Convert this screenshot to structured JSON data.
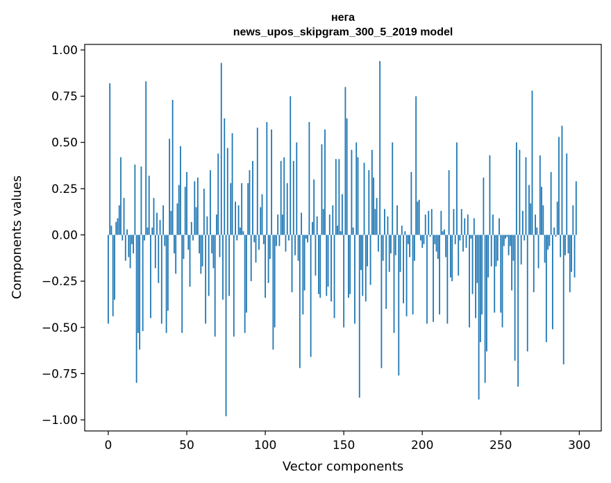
{
  "chart_data": {
    "type": "bar",
    "title": "нега",
    "subtitle": "news_upos_skipgram_300_5_2019 model",
    "xlabel": "Vector components",
    "ylabel": "Components values",
    "xlim": [
      -15,
      314
    ],
    "ylim": [
      -1.06,
      1.03
    ],
    "xticks": [
      0,
      50,
      100,
      150,
      200,
      250,
      300
    ],
    "yticks": [
      1.0,
      0.75,
      0.5,
      0.25,
      0.0,
      -0.25,
      -0.5,
      -0.75,
      -1.0
    ],
    "ytick_labels": [
      "1.00",
      "0.75",
      "0.50",
      "0.25",
      "0.00",
      "−0.25",
      "−0.50",
      "−0.75",
      "−1.00"
    ],
    "grid": false,
    "color": "#1f77b4",
    "values": [
      -0.48,
      0.82,
      0.05,
      -0.44,
      -0.35,
      0.07,
      0.09,
      0.16,
      0.42,
      -0.03,
      0.2,
      -0.14,
      0.03,
      -0.12,
      -0.18,
      -0.05,
      -0.1,
      0.38,
      -0.8,
      -0.53,
      -0.62,
      0.37,
      -0.52,
      -0.03,
      0.83,
      0.04,
      0.32,
      -0.45,
      0.04,
      0.2,
      -0.18,
      0.12,
      -0.26,
      0.08,
      -0.48,
      0.16,
      -0.06,
      -0.53,
      -0.41,
      0.52,
      0.13,
      0.73,
      -0.1,
      -0.21,
      0.17,
      0.27,
      0.48,
      -0.53,
      -0.13,
      0.26,
      0.34,
      -0.08,
      -0.28,
      0.07,
      -0.03,
      0.29,
      0.15,
      0.31,
      -0.1,
      -0.21,
      -0.17,
      0.25,
      -0.48,
      0.1,
      -0.33,
      0.35,
      -0.1,
      -0.18,
      -0.55,
      0.11,
      0.44,
      -0.12,
      0.93,
      -0.35,
      0.63,
      -0.98,
      0.47,
      -0.33,
      0.28,
      0.55,
      -0.55,
      0.18,
      -0.03,
      0.16,
      0.04,
      0.28,
      0.02,
      -0.53,
      -0.42,
      0.28,
      0.35,
      -0.25,
      0.4,
      -0.04,
      -0.15,
      0.58,
      -0.08,
      0.15,
      0.22,
      -0.05,
      -0.34,
      0.61,
      -0.26,
      -0.13,
      0.57,
      -0.62,
      -0.5,
      -0.06,
      0.11,
      -0.06,
      0.4,
      0.11,
      0.42,
      -0.09,
      0.28,
      -0.03,
      0.75,
      -0.31,
      0.4,
      -0.11,
      0.5,
      -0.14,
      -0.72,
      0.12,
      -0.43,
      -0.3,
      -0.02,
      -0.04,
      0.61,
      -0.66,
      0.07,
      0.3,
      -0.22,
      0.1,
      -0.32,
      -0.34,
      0.49,
      0.14,
      0.57,
      -0.33,
      -0.28,
      0.11,
      -0.36,
      0.16,
      -0.45,
      0.41,
      0.05,
      0.41,
      0.02,
      0.22,
      -0.5,
      0.8,
      0.63,
      -0.34,
      -0.32,
      0.46,
      0.04,
      -0.48,
      0.5,
      0.42,
      -0.88,
      -0.19,
      -0.33,
      0.39,
      -0.36,
      -0.17,
      0.35,
      -0.27,
      0.46,
      0.31,
      0.14,
      0.2,
      -0.09,
      0.94,
      -0.72,
      -0.14,
      0.14,
      -0.4,
      0.1,
      -0.2,
      -0.1,
      0.5,
      -0.53,
      -0.11,
      0.16,
      -0.76,
      -0.2,
      0.05,
      -0.37,
      0.02,
      -0.44,
      -0.05,
      -0.12,
      0.34,
      -0.43,
      -0.14,
      0.75,
      0.18,
      0.19,
      -0.03,
      -0.07,
      -0.05,
      0.11,
      -0.48,
      0.13,
      -0.01,
      0.14,
      -0.47,
      -0.05,
      -0.09,
      -0.13,
      -0.43,
      0.13,
      0.02,
      0.03,
      -0.12,
      -0.48,
      0.35,
      -0.23,
      -0.25,
      0.14,
      -0.05,
      0.5,
      -0.22,
      -0.03,
      0.14,
      -0.09,
      0.09,
      -0.07,
      0.11,
      -0.5,
      -0.02,
      -0.32,
      0.09,
      -0.45,
      -0.26,
      -0.89,
      -0.58,
      -0.43,
      0.31,
      -0.8,
      -0.63,
      -0.23,
      0.43,
      -0.17,
      0.11,
      -0.42,
      -0.17,
      -0.14,
      0.09,
      -0.42,
      -0.5,
      -0.06,
      -0.02,
      -0.01,
      -0.11,
      -0.06,
      -0.3,
      -0.14,
      -0.68,
      0.5,
      -0.82,
      0.46,
      -0.16,
      0.13,
      -0.03,
      0.42,
      -0.63,
      0.27,
      0.17,
      0.78,
      -0.31,
      0.11,
      0.04,
      -0.18,
      0.43,
      0.26,
      0.16,
      -0.15,
      -0.58,
      -0.08,
      -0.06,
      0.34,
      -0.51,
      0.04,
      -0.01,
      0.18,
      0.53,
      -0.12,
      0.59,
      -0.7,
      -0.11,
      0.44,
      -0.1,
      -0.31,
      -0.2,
      0.16,
      -0.23,
      0.29
    ]
  }
}
